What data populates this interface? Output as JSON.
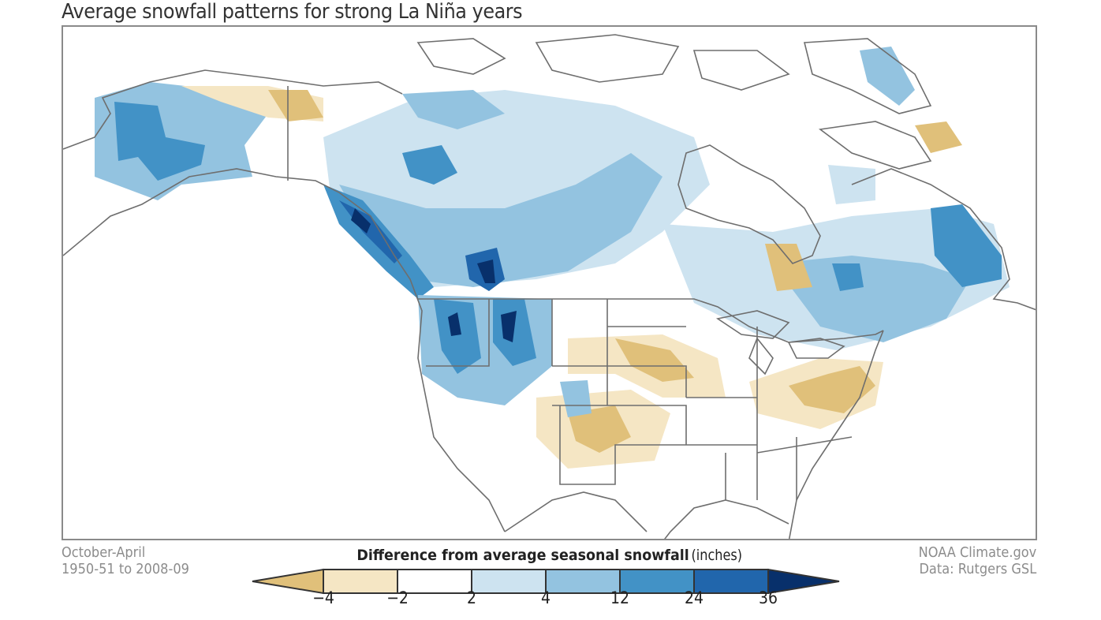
{
  "title": "Average snowfall patterns for strong La Niña years",
  "caption_left": [
    "October-April",
    "1950-51 to 2008-09"
  ],
  "caption_right": [
    "NOAA Climate.gov",
    "Data: Rutgers GSL"
  ],
  "legend": {
    "title_bold": "Difference from average seasonal snowfall",
    "title_unit": " (inches)",
    "ticks": [
      "−4",
      "−2",
      "2",
      "4",
      "12",
      "24",
      "36"
    ],
    "bins": [
      {
        "range": "< -4",
        "color": "#e0c07a"
      },
      {
        "range": "-4 to -2",
        "color": "#f5e6c4"
      },
      {
        "range": "-2 to 2",
        "color": "#ffffff"
      },
      {
        "range": "2 to 4",
        "color": "#cde3f0"
      },
      {
        "range": "4 to 12",
        "color": "#93c3e0"
      },
      {
        "range": "12 to 24",
        "color": "#4292c6"
      },
      {
        "range": "24 to 36",
        "color": "#2166ac"
      },
      {
        "range": "> 36",
        "color": "#08306b"
      }
    ]
  },
  "map": {
    "region": "North America",
    "variable": "Snowfall anomaly, strong La Niña years",
    "outline_color": "#6e6e6e",
    "highlights": [
      {
        "area": "Alaska (west/central)",
        "bin": "4 to 24"
      },
      {
        "area": "Pacific Northwest & Northern Rockies",
        "bin": "12 to >36"
      },
      {
        "area": "Southern Canada",
        "bin": "2 to 12"
      },
      {
        "area": "Quebec / Labrador",
        "bin": "4 to 24"
      },
      {
        "area": "Northern Plains / Iowa",
        "bin": "-4 to -2"
      },
      {
        "area": "Southwest / New Mexico / Colorado",
        "bin": "-4 to < -4"
      },
      {
        "area": "Mid-Atlantic / Ohio Valley",
        "bin": "-4 to < -4"
      },
      {
        "area": "Yukon / NW Canada",
        "bin": "-4 to < -4"
      }
    ]
  }
}
